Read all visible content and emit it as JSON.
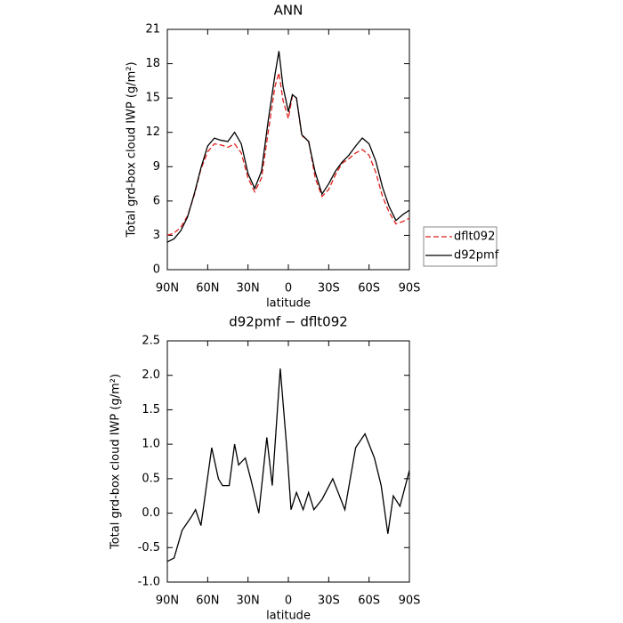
{
  "chart_data": [
    {
      "type": "line",
      "title": "ANN",
      "xlabel": "latitude",
      "ylabel": "Total grd-box cloud IWP (g/m²)",
      "x": [
        90,
        85,
        80,
        75,
        70,
        65,
        60,
        55,
        50,
        45,
        40,
        35,
        30,
        25,
        20,
        15,
        10,
        7,
        4,
        0,
        -3,
        -6,
        -10,
        -15,
        -20,
        -25,
        -30,
        -35,
        -40,
        -45,
        -50,
        -55,
        -60,
        -65,
        -70,
        -75,
        -80,
        -85,
        -90
      ],
      "series": [
        {
          "name": "dflt092",
          "color": "#e0201c",
          "dashed": true,
          "values": [
            3.0,
            3.2,
            3.7,
            4.7,
            6.5,
            8.8,
            10.3,
            11.0,
            10.9,
            10.7,
            11.0,
            10.2,
            8.0,
            6.8,
            8.0,
            12.0,
            16.0,
            17.2,
            14.8,
            13.2,
            15.2,
            15.0,
            11.7,
            11.3,
            8.0,
            6.4,
            7.0,
            8.3,
            9.3,
            9.7,
            10.2,
            10.5,
            10.0,
            8.5,
            6.4,
            5.0,
            4.0,
            4.2,
            4.5
          ]
        },
        {
          "name": "d92pmf",
          "color": "#000000",
          "dashed": false,
          "values": [
            2.4,
            2.7,
            3.4,
            4.6,
            6.6,
            8.9,
            10.8,
            11.5,
            11.3,
            11.2,
            12.0,
            11.0,
            8.4,
            7.1,
            8.6,
            13.0,
            17.0,
            19.1,
            16.0,
            13.8,
            15.3,
            15.0,
            11.8,
            11.2,
            8.5,
            6.6,
            7.5,
            8.6,
            9.4,
            10.0,
            10.8,
            11.5,
            11.0,
            9.5,
            7.2,
            5.5,
            4.3,
            4.8,
            5.2
          ]
        }
      ],
      "xlim": [
        90,
        -90
      ],
      "xticks": [
        {
          "value": 90,
          "label": "90N"
        },
        {
          "value": 60,
          "label": "60N"
        },
        {
          "value": 30,
          "label": "30N"
        },
        0,
        {
          "value": -30,
          "label": "30S"
        },
        {
          "value": -60,
          "label": "60S"
        },
        {
          "value": -90,
          "label": "90S"
        }
      ],
      "ylim": [
        0,
        21
      ],
      "yticks": [
        0,
        3,
        6,
        9,
        12,
        15,
        18,
        21
      ],
      "legend": "right"
    },
    {
      "type": "line",
      "title": "d92pmf − dflt092",
      "xlabel": "latitude",
      "ylabel": "Total grd-box cloud IWP (g/m²)",
      "x": [
        90,
        85,
        79,
        72,
        69,
        65,
        57,
        52,
        49,
        44,
        40,
        37,
        32,
        28,
        22,
        16,
        12,
        6,
        1,
        -2,
        -6,
        -11,
        -15,
        -19,
        -25,
        -33,
        -42,
        -50,
        -57,
        -64,
        -69,
        -74,
        -78,
        -83,
        -90
      ],
      "values": [
        -0.7,
        -0.65,
        -0.25,
        -0.05,
        0.05,
        -0.18,
        0.95,
        0.5,
        0.4,
        0.4,
        1.0,
        0.7,
        0.8,
        0.5,
        0.0,
        1.1,
        0.4,
        2.1,
        0.9,
        0.05,
        0.3,
        0.05,
        0.3,
        0.05,
        0.2,
        0.5,
        0.05,
        0.95,
        1.15,
        0.8,
        0.4,
        -0.3,
        0.25,
        0.1,
        0.62
      ],
      "color": "#000000",
      "xlim": [
        90,
        -90
      ],
      "xticks": [
        {
          "value": 90,
          "label": "90N"
        },
        {
          "value": 60,
          "label": "60N"
        },
        {
          "value": 30,
          "label": "30N"
        },
        0,
        {
          "value": -30,
          "label": "30S"
        },
        {
          "value": -60,
          "label": "60S"
        },
        {
          "value": -90,
          "label": "90S"
        }
      ],
      "ylim": [
        -1,
        2.5
      ],
      "yticks": [
        {
          "value": -1,
          "label": "-1.0"
        },
        -0.5,
        {
          "value": 0,
          "label": "0.0"
        },
        0.5,
        {
          "value": 1,
          "label": "1.0"
        },
        1.5,
        {
          "value": 2,
          "label": "2.0"
        },
        2.5
      ]
    }
  ]
}
